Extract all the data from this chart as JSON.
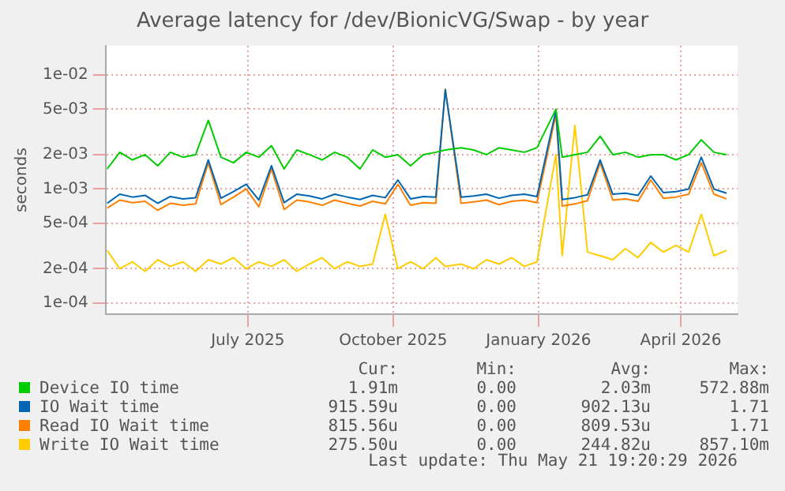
{
  "chart_data": {
    "type": "line",
    "title": "Average latency for /dev/BionicVG/Swap - by year",
    "ylabel": "seconds",
    "log": "y",
    "x": [
      "2025-04-18",
      "2025-04-26",
      "2025-05-04",
      "2025-05-12",
      "2025-05-20",
      "2025-05-28",
      "2025-06-05",
      "2025-06-13",
      "2025-06-21",
      "2025-06-29",
      "2025-07-07",
      "2025-07-15",
      "2025-07-23",
      "2025-07-31",
      "2025-08-08",
      "2025-08-16",
      "2025-08-24",
      "2025-09-01",
      "2025-09-09",
      "2025-09-17",
      "2025-09-25",
      "2025-10-03",
      "2025-10-11",
      "2025-10-19",
      "2025-10-27",
      "2025-11-04",
      "2025-11-12",
      "2025-11-18",
      "2025-11-28",
      "2025-12-06",
      "2025-12-14",
      "2025-12-22",
      "2025-12-30",
      "2026-01-07",
      "2026-01-15",
      "2026-01-27",
      "2026-01-31",
      "2026-02-08",
      "2026-02-16",
      "2026-02-24",
      "2026-03-04",
      "2026-03-12",
      "2026-03-20",
      "2026-03-28",
      "2026-04-05",
      "2026-04-13",
      "2026-04-21",
      "2026-04-29",
      "2026-05-07",
      "2026-05-15"
    ],
    "series": [
      {
        "name": "Device IO time",
        "color": "#00cc00",
        "values": [
          0.0015,
          0.0021,
          0.0018,
          0.002,
          0.0016,
          0.0021,
          0.0019,
          0.002,
          0.004,
          0.0019,
          0.0017,
          0.0021,
          0.0019,
          0.0024,
          0.0015,
          0.0022,
          0.002,
          0.0018,
          0.0021,
          0.0019,
          0.0015,
          0.0022,
          0.0019,
          0.002,
          0.0016,
          0.002,
          0.0021,
          0.0022,
          0.0023,
          0.0022,
          0.002,
          0.0023,
          0.0022,
          0.0021,
          0.0023,
          0.005,
          0.0019,
          0.002,
          0.0021,
          0.0029,
          0.002,
          0.0021,
          0.0019,
          0.002,
          0.002,
          0.0018,
          0.002,
          0.0027,
          0.0021,
          0.002
        ]
      },
      {
        "name": "IO Wait time",
        "color": "#0066b3",
        "values": [
          0.00075,
          0.0009,
          0.00085,
          0.00088,
          0.00075,
          0.00086,
          0.00082,
          0.00084,
          0.0018,
          0.00083,
          0.00095,
          0.0011,
          0.0008,
          0.0016,
          0.00076,
          0.0009,
          0.00087,
          0.00082,
          0.0009,
          0.00085,
          0.00081,
          0.00088,
          0.00084,
          0.0012,
          0.00082,
          0.00086,
          0.00085,
          0.0074,
          0.00085,
          0.00087,
          0.0009,
          0.00083,
          0.00088,
          0.0009,
          0.00086,
          0.0049,
          0.00081,
          0.00084,
          0.00089,
          0.0018,
          0.0009,
          0.00092,
          0.00088,
          0.0013,
          0.00093,
          0.00095,
          0.001,
          0.0019,
          0.001,
          0.00092
        ]
      },
      {
        "name": "Read IO Wait time",
        "color": "#ff8000",
        "values": [
          0.00068,
          0.0008,
          0.00076,
          0.00078,
          0.00065,
          0.00075,
          0.00072,
          0.00074,
          0.0017,
          0.00073,
          0.00085,
          0.001,
          0.0007,
          0.0015,
          0.00066,
          0.0008,
          0.00077,
          0.00072,
          0.0008,
          0.00075,
          0.00071,
          0.00078,
          0.00074,
          0.0011,
          0.00072,
          0.00076,
          0.00075,
          0.0075,
          0.00075,
          0.00077,
          0.0008,
          0.00073,
          0.00078,
          0.0008,
          0.00076,
          0.0045,
          0.00071,
          0.00074,
          0.00079,
          0.0017,
          0.0008,
          0.00082,
          0.00078,
          0.0012,
          0.00083,
          0.00085,
          0.0009,
          0.0017,
          0.0009,
          0.00082
        ]
      },
      {
        "name": "Write IO Wait time",
        "color": "#ffcc00",
        "values": [
          0.00029,
          0.0002,
          0.00023,
          0.00019,
          0.00024,
          0.00021,
          0.00023,
          0.00019,
          0.00024,
          0.00022,
          0.00025,
          0.0002,
          0.00023,
          0.00021,
          0.00024,
          0.00019,
          0.00022,
          0.00025,
          0.0002,
          0.00023,
          0.00021,
          0.00022,
          0.0006,
          0.0002,
          0.00023,
          0.0002,
          0.00025,
          0.00021,
          0.00022,
          0.0002,
          0.00024,
          0.00022,
          0.00025,
          0.00021,
          0.00023,
          0.002,
          0.00026,
          0.0036,
          0.00028,
          0.00026,
          0.00024,
          0.0003,
          0.00025,
          0.00034,
          0.00028,
          0.00032,
          0.00028,
          0.0006,
          0.00026,
          0.00029
        ]
      }
    ],
    "xlim": [
      "2025-04-17",
      "2026-05-22"
    ],
    "xticks": [
      {
        "value": "2025-07-16",
        "label": "July 2025"
      },
      {
        "value": "2025-10-16",
        "label": "October 2025"
      },
      {
        "value": "2026-01-16",
        "label": "January 2026"
      },
      {
        "value": "2026-04-16",
        "label": "April 2026"
      }
    ],
    "ylim": [
      8e-05,
      0.018
    ],
    "yticks": [
      {
        "value": 0.0001,
        "label": "1e-04"
      },
      {
        "value": 0.0002,
        "label": "2e-04"
      },
      {
        "value": 0.0005,
        "label": "5e-04"
      },
      {
        "value": 0.001,
        "label": "1e-03"
      },
      {
        "value": 0.002,
        "label": "2e-03"
      },
      {
        "value": 0.005,
        "label": "5e-03"
      },
      {
        "value": 0.01,
        "label": "1e-02"
      }
    ],
    "grid": true,
    "legend": "bottom",
    "marker": "none",
    "line_style": "solid",
    "annotations": [
      "Cur:",
      "Min:",
      "Avg:",
      "Max:",
      "1.91m",
      "0.00",
      "2.03m",
      "572.88m",
      "915.59u",
      "0.00",
      "902.13u",
      "1.71",
      "815.56u",
      "0.00",
      "809.53u",
      "1.71",
      "275.50u",
      "0.00",
      "244.82u",
      "857.10m",
      "Last update: Thu May 21 19:20:29 2026"
    ]
  }
}
